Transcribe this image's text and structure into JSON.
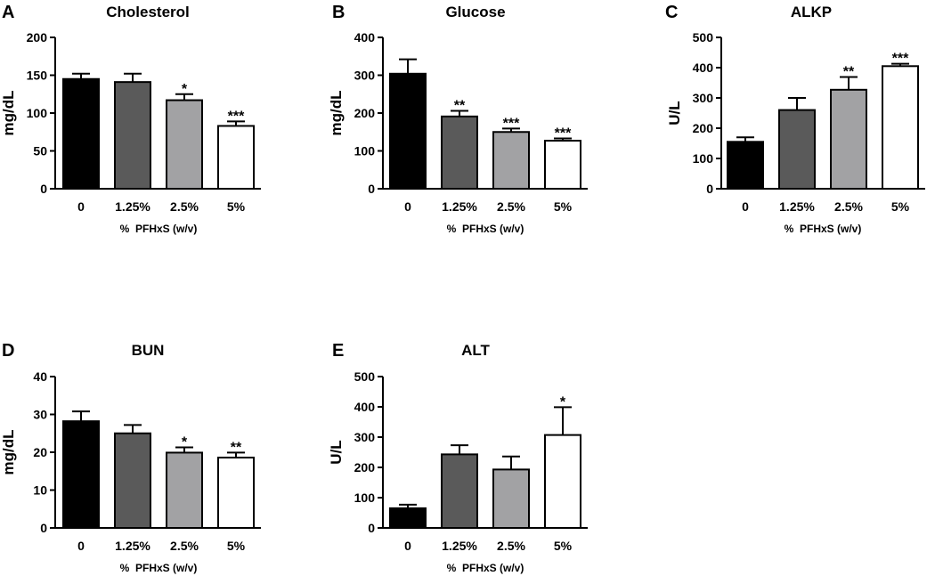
{
  "figure": {
    "bar_colors": [
      "#000000",
      "#5a5a5a",
      "#a2a2a4",
      "#ffffff"
    ]
  },
  "chart_data": [
    {
      "panel": "A",
      "type": "bar",
      "title": "Cholesterol",
      "categories": [
        "0",
        "1.25%",
        "2.5%",
        "5%"
      ],
      "values": [
        145,
        141,
        117,
        83
      ],
      "errors": [
        7,
        11,
        8,
        6
      ],
      "significance": [
        "",
        "",
        "*",
        "***"
      ],
      "xlabel": "%  PFHxS (w/v)",
      "ylabel": "mg/dL",
      "ylim": [
        0,
        200
      ],
      "yticks": [
        0,
        50,
        100,
        150,
        200
      ]
    },
    {
      "panel": "B",
      "type": "bar",
      "title": "Glucose",
      "categories": [
        "0",
        "1.25%",
        "2.5%",
        "5%"
      ],
      "values": [
        304,
        191,
        150,
        127
      ],
      "errors": [
        38,
        15,
        9,
        6
      ],
      "significance": [
        "",
        "**",
        "***",
        "***"
      ],
      "xlabel": "%  PFHxS (w/v)",
      "ylabel": "mg/dL",
      "ylim": [
        0,
        400
      ],
      "yticks": [
        0,
        100,
        200,
        300,
        400
      ]
    },
    {
      "panel": "C",
      "type": "bar",
      "title": "ALKP",
      "categories": [
        "0",
        "1.25%",
        "2.5%",
        "5%"
      ],
      "values": [
        155,
        260,
        327,
        405
      ],
      "errors": [
        15,
        40,
        42,
        8
      ],
      "significance": [
        "",
        "",
        "**",
        "***"
      ],
      "xlabel": "%  PFHxS (w/v)",
      "ylabel": "U/L",
      "ylim": [
        0,
        500
      ],
      "yticks": [
        0,
        100,
        200,
        300,
        400,
        500
      ]
    },
    {
      "panel": "D",
      "type": "bar",
      "title": "BUN",
      "categories": [
        "0",
        "1.25%",
        "2.5%",
        "5%"
      ],
      "values": [
        28.2,
        25.0,
        19.9,
        18.6
      ],
      "errors": [
        2.6,
        2.2,
        1.4,
        1.3
      ],
      "significance": [
        "",
        "",
        "*",
        "**"
      ],
      "xlabel": "%  PFHxS (w/v)",
      "ylabel": "mg/dL",
      "ylim": [
        0,
        40
      ],
      "yticks": [
        0,
        10,
        20,
        30,
        40
      ]
    },
    {
      "panel": "E",
      "type": "bar",
      "title": "ALT",
      "categories": [
        "0",
        "1.25%",
        "2.5%",
        "5%"
      ],
      "values": [
        65,
        243,
        193,
        307
      ],
      "errors": [
        12,
        30,
        43,
        92
      ],
      "significance": [
        "",
        "",
        "",
        "*"
      ],
      "xlabel": "%  PFHxS (w/v)",
      "ylabel": "U/L",
      "ylim": [
        0,
        500
      ],
      "yticks": [
        0,
        100,
        200,
        300,
        400,
        500
      ]
    }
  ]
}
